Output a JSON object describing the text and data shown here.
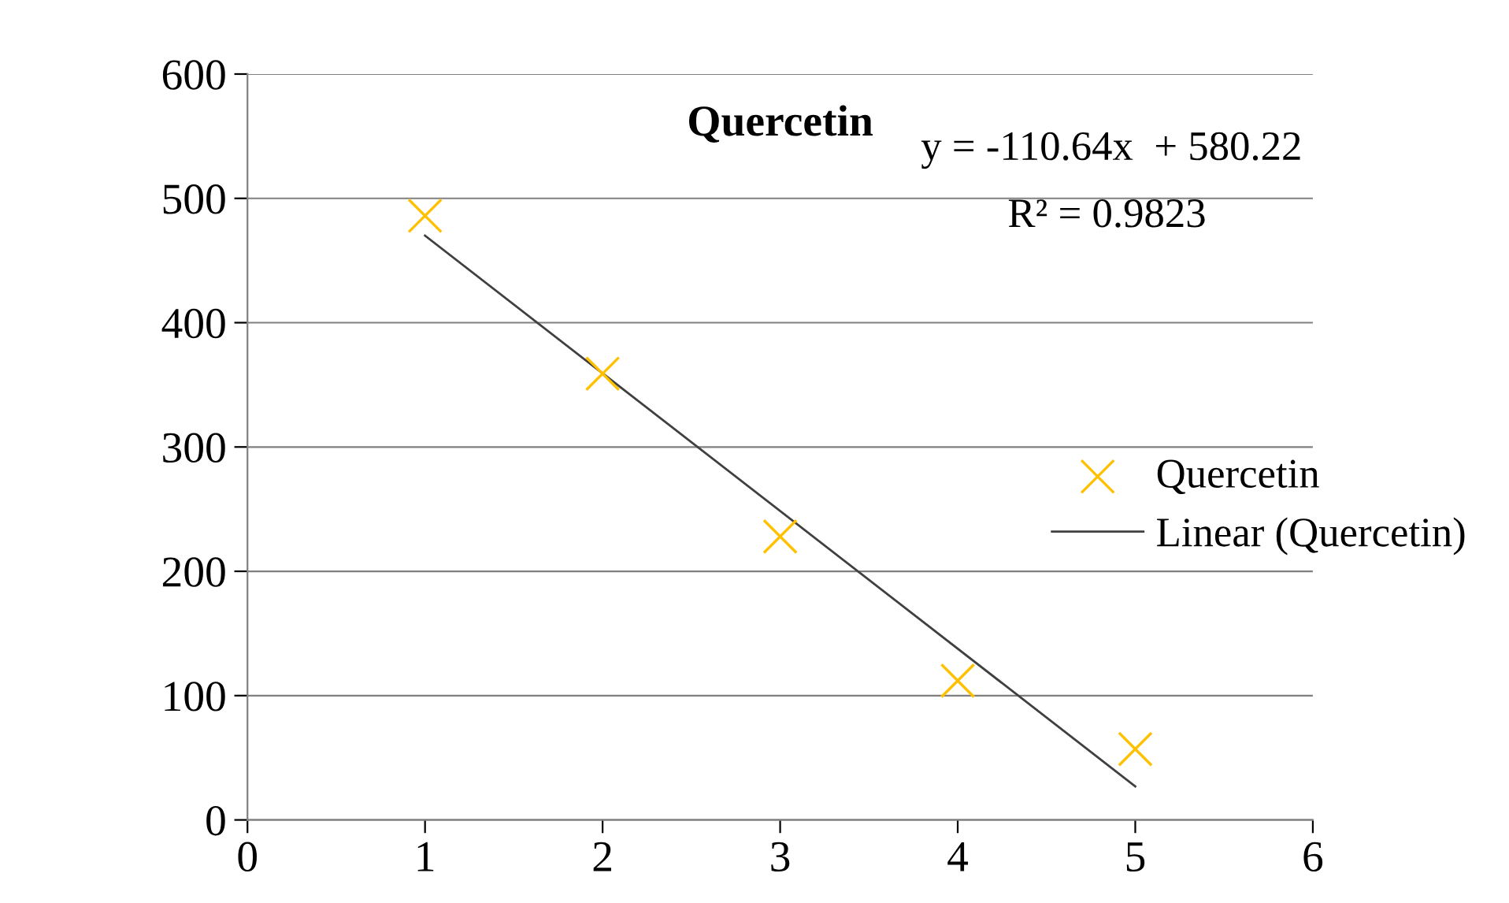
{
  "chart_data": {
    "type": "scatter",
    "title": "Quercetin",
    "series": [
      {
        "name": "Quercetin",
        "color": "#ffc000",
        "marker": "cross",
        "x": [
          1,
          2,
          3,
          4,
          5
        ],
        "values": [
          486,
          359,
          228,
          112,
          57
        ]
      },
      {
        "name": "Linear (Quercetin)",
        "type": "line",
        "color": "#404040",
        "marker": "none",
        "line_style": "solid",
        "x": [
          1,
          5
        ],
        "values": [
          470,
          27
        ]
      }
    ],
    "annotations": [
      "y = -110.64x  + 580.22",
      "R² = 0.9823"
    ],
    "xlim": [
      0,
      6
    ],
    "xticks": [
      0,
      1,
      2,
      3,
      4,
      5,
      6
    ],
    "ylim": [
      0,
      600
    ],
    "yticks": [
      0,
      100,
      200,
      300,
      400,
      500,
      600
    ],
    "grid": "y",
    "legend": "right"
  }
}
